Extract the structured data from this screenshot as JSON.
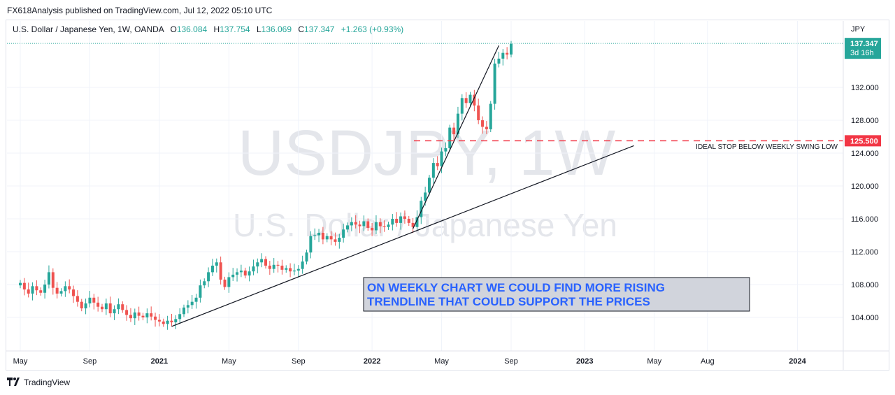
{
  "header": {
    "publisher": "FX618Analysis published on TradingView.com, Jul 12, 2022 05:10 UTC"
  },
  "legend": {
    "symbol": "U.S. Dollar / Japanese Yen, 1W, OANDA",
    "open_label": "O",
    "open": "136.084",
    "high_label": "H",
    "high": "137.754",
    "low_label": "L",
    "low": "136.069",
    "close_label": "C",
    "close": "137.347",
    "change": "+1.263 (+0.93%)"
  },
  "watermark": {
    "ticker": "USDJPY, 1W",
    "name": "U.S. Dollar / Japanese Yen"
  },
  "footer": {
    "brand": "TradingView"
  },
  "colors": {
    "up": "#26a69a",
    "down": "#ef5350",
    "stop": "#f23645",
    "box_bg": "#d1d4dc",
    "box_text": "#2962ff"
  },
  "chart_data": {
    "type": "candlestick",
    "currency": "JPY",
    "ylim": [
      100.0,
      140.0
    ],
    "y_ticks": [
      "104.000",
      "108.000",
      "112.000",
      "116.000",
      "120.000",
      "124.000",
      "128.000",
      "132.000"
    ],
    "x_ticks": [
      "May",
      "Sep",
      "2021",
      "May",
      "Sep",
      "2022",
      "May",
      "Sep",
      "2023",
      "May",
      "Aug",
      "2024"
    ],
    "x_tick_weeks": [
      0,
      17,
      34,
      51,
      68,
      86,
      103,
      120,
      138,
      155,
      168,
      190
    ],
    "last_price": {
      "label": "137.347",
      "countdown": "3d 16h",
      "value": 137.347
    },
    "stop_level": {
      "label": "125.500",
      "value": 125.5,
      "annotation": "IDEAL STOP BELOW WEEKLY SWING LOW"
    },
    "trendlines": [
      {
        "from": {
          "week": 37,
          "price": 102.9
        },
        "to": {
          "week": 150,
          "price": 124.9
        }
      },
      {
        "from": {
          "week": 96,
          "price": 114.8
        },
        "to": {
          "week": 117,
          "price": 137.1
        }
      }
    ],
    "annotation_box": {
      "lines": [
        "ON WEEKLY CHART WE COULD FIND MORE RISING",
        "TRENDLINE THAT COULD SUPPORT THE PRICES"
      ]
    },
    "closes": [
      108.2,
      107.4,
      106.9,
      107.8,
      107.3,
      107.0,
      108.0,
      109.5,
      107.6,
      106.9,
      107.2,
      107.8,
      107.4,
      106.6,
      105.9,
      105.1,
      105.7,
      106.4,
      105.8,
      105.3,
      105.0,
      105.7,
      104.5,
      105.0,
      105.6,
      104.9,
      104.3,
      103.9,
      104.6,
      104.2,
      104.0,
      104.5,
      104.1,
      103.7,
      103.5,
      103.2,
      103.6,
      103.4,
      103.8,
      104.4,
      105.2,
      105.5,
      105.9,
      106.4,
      107.9,
      108.4,
      109.5,
      110.3,
      110.7,
      108.6,
      107.7,
      108.9,
      109.2,
      109.5,
      109.7,
      109.1,
      109.6,
      110.2,
      110.7,
      111.1,
      110.3,
      109.9,
      110.4,
      110.3,
      109.8,
      110.0,
      109.6,
      109.7,
      109.9,
      110.8,
      111.9,
      113.9,
      114.0,
      114.3,
      113.5,
      113.9,
      113.5,
      113.2,
      113.7,
      114.7,
      115.2,
      115.6,
      115.3,
      115.1,
      115.7,
      114.9,
      114.6,
      115.6,
      115.1,
      115.0,
      115.3,
      116.0,
      115.5,
      116.3,
      116.0,
      115.5,
      115.0,
      116.2,
      118.2,
      119.2,
      121.0,
      122.8,
      122.4,
      124.2,
      124.6,
      127.1,
      126.3,
      128.8,
      130.7,
      130.1,
      131.1,
      129.8,
      128.0,
      127.2,
      126.9,
      130.0,
      134.9,
      135.5,
      136.2,
      136.0,
      137.3
    ],
    "n_weeks": 200
  }
}
